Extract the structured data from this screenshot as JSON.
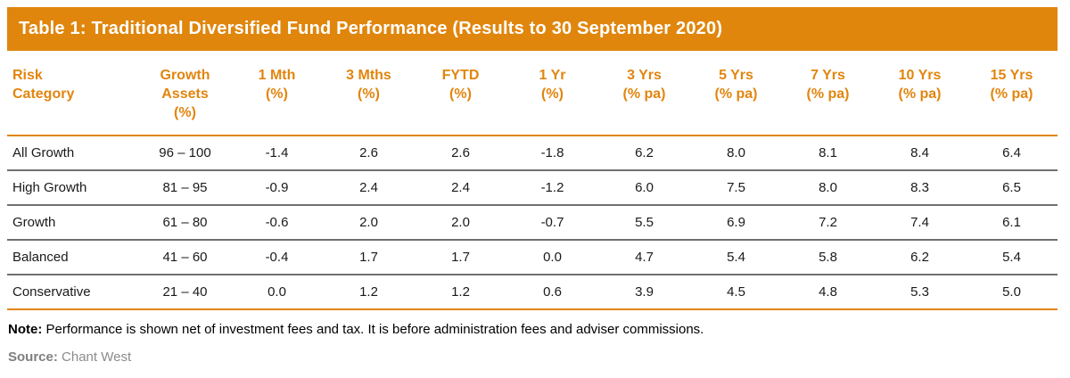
{
  "title": "Table 1: Traditional Diversified Fund Performance (Results to 30 September 2020)",
  "colors": {
    "accent_orange": "#E0860D",
    "header_text_orange": "#E2850E",
    "row_divider_gray": "#707070",
    "source_gray": "#8C8C8C"
  },
  "chart_data": {
    "type": "table",
    "title": "Table 1: Traditional Diversified Fund Performance (Results to 30 September 2020)",
    "columns": [
      "Risk Category",
      "Growth Assets (%)",
      "1 Mth (%)",
      "3 Mths (%)",
      "FYTD (%)",
      "1 Yr (%)",
      "3 Yrs (% pa)",
      "5 Yrs (% pa)",
      "7 Yrs (% pa)",
      "10 Yrs (% pa)",
      "15 Yrs (% pa)"
    ],
    "rows": [
      [
        "All Growth",
        "96 – 100",
        -1.4,
        2.6,
        2.6,
        -1.8,
        6.2,
        8.0,
        8.1,
        8.4,
        6.4
      ],
      [
        "High Growth",
        "81 – 95",
        -0.9,
        2.4,
        2.4,
        -1.2,
        6.0,
        7.5,
        8.0,
        8.3,
        6.5
      ],
      [
        "Growth",
        "61 – 80",
        -0.6,
        2.0,
        2.0,
        -0.7,
        5.5,
        6.9,
        7.2,
        7.4,
        6.1
      ],
      [
        "Balanced",
        "41 – 60",
        -0.4,
        1.7,
        1.7,
        0.0,
        4.7,
        5.4,
        5.8,
        6.2,
        5.4
      ],
      [
        "Conservative",
        "21 – 40",
        0.0,
        1.2,
        1.2,
        0.6,
        3.9,
        4.5,
        4.8,
        5.3,
        5.0
      ]
    ]
  },
  "table": {
    "columns": [
      "Risk\nCategory",
      "Growth\nAssets\n(%)",
      "1 Mth\n(%)",
      "3 Mths\n(%)",
      "FYTD\n(%)",
      "1 Yr\n(%)",
      "3 Yrs\n(% pa)",
      "5 Yrs\n(% pa)",
      "7 Yrs\n(% pa)",
      "10 Yrs\n(% pa)",
      "15 Yrs\n(% pa)"
    ],
    "rows": [
      [
        "All Growth",
        "96 – 100",
        "-1.4",
        "2.6",
        "2.6",
        "-1.8",
        "6.2",
        "8.0",
        "8.1",
        "8.4",
        "6.4"
      ],
      [
        "High Growth",
        "81 – 95",
        "-0.9",
        "2.4",
        "2.4",
        "-1.2",
        "6.0",
        "7.5",
        "8.0",
        "8.3",
        "6.5"
      ],
      [
        "Growth",
        "61 – 80",
        "-0.6",
        "2.0",
        "2.0",
        "-0.7",
        "5.5",
        "6.9",
        "7.2",
        "7.4",
        "6.1"
      ],
      [
        "Balanced",
        "41 – 60",
        "-0.4",
        "1.7",
        "1.7",
        "0.0",
        "4.7",
        "5.4",
        "5.8",
        "6.2",
        "5.4"
      ],
      [
        "Conservative",
        "21 – 40",
        "0.0",
        "1.2",
        "1.2",
        "0.6",
        "3.9",
        "4.5",
        "4.8",
        "5.3",
        "5.0"
      ]
    ]
  },
  "note": {
    "label": "Note:",
    "text": " Performance is shown net of investment fees and tax. It is before administration fees and adviser commissions."
  },
  "source": {
    "label": "Source:",
    "text": " Chant West"
  }
}
